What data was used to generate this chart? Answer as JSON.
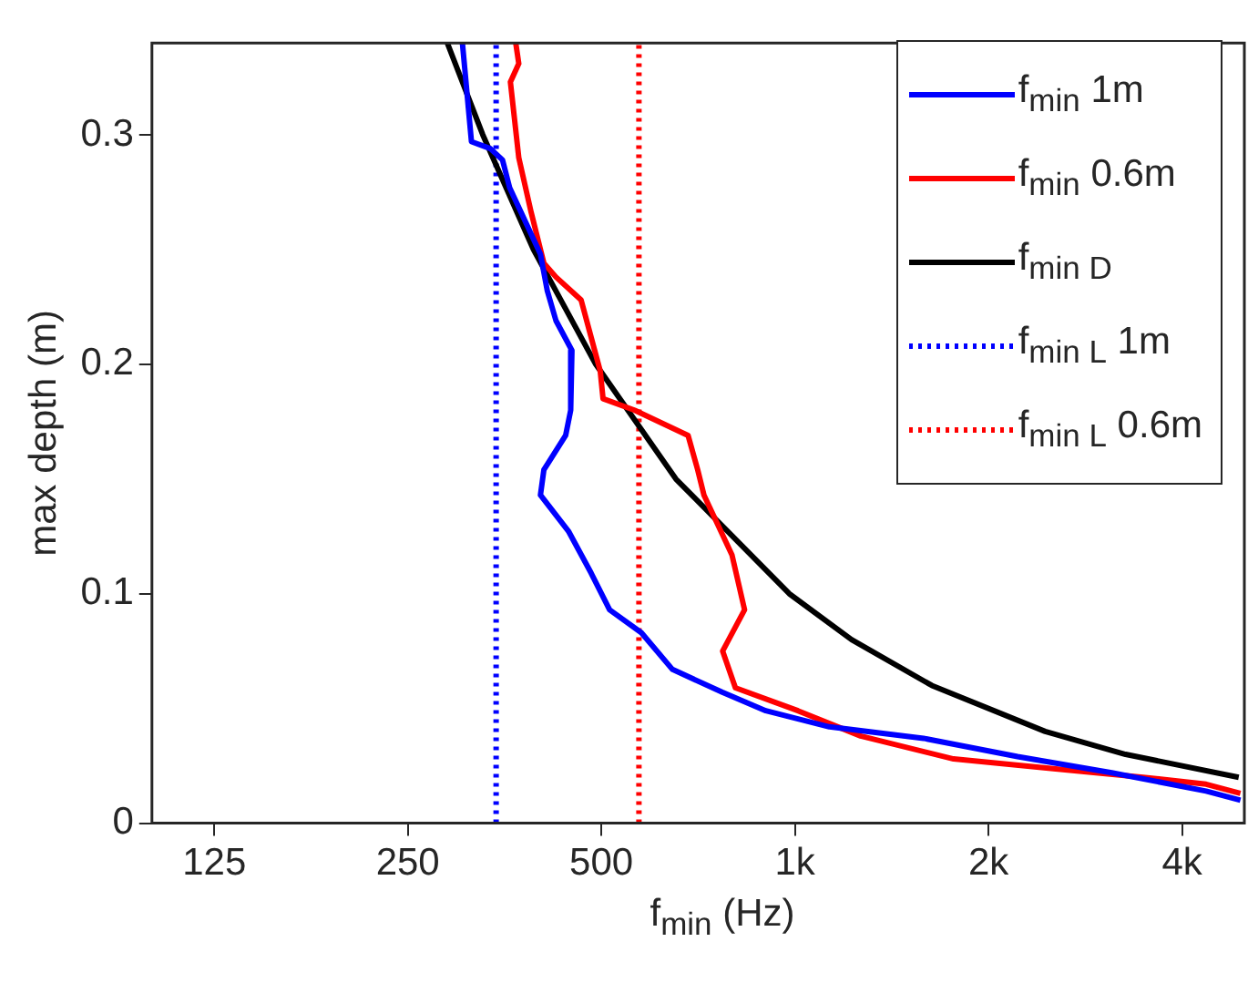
{
  "chart_data": {
    "type": "line",
    "xlabel": "f$_{min}$ (Hz)",
    "ylabel": "max depth (m)",
    "log": "x",
    "xlim": [
      100,
      5000
    ],
    "xticks": [
      125,
      250,
      500,
      {
        "value": 1000,
        "label": "1k"
      },
      {
        "value": 2000,
        "label": "2k"
      },
      {
        "value": 4000,
        "label": "4k"
      }
    ],
    "ylim": [
      0,
      0.34
    ],
    "yticks": [
      0,
      0.1,
      0.2,
      0.3
    ],
    "grid": false,
    "legend": "top right",
    "series": [
      {
        "name": "f$_{min}$ 1m",
        "color": "#0000ff",
        "line_style": "solid",
        "x": [
          304,
          314,
          336,
          351,
          360,
          402,
          412,
          425,
          450,
          448,
          440,
          407,
          402,
          445,
          482,
          515,
          577,
          645,
          772,
          901,
          1131,
          1585,
          2220,
          3110,
          4360,
          4930
        ],
        "values": [
          0.34,
          0.297,
          0.294,
          0.289,
          0.277,
          0.248,
          0.232,
          0.219,
          0.206,
          0.18,
          0.169,
          0.154,
          0.143,
          0.127,
          0.109,
          0.093,
          0.083,
          0.067,
          0.057,
          0.049,
          0.042,
          0.037,
          0.029,
          0.022,
          0.014,
          0.01
        ]
      },
      {
        "name": "f$_{min}$ 0.6m",
        "color": "#ff0000",
        "line_style": "solid",
        "x": [
          368,
          372,
          361,
          372,
          389,
          407,
          425,
          465,
          498,
          503,
          563,
          682,
          706,
          722,
          798,
          835,
          772,
          808,
          1011,
          1265,
          1765,
          2480,
          3480,
          4360,
          4930
        ],
        "values": [
          0.34,
          0.331,
          0.323,
          0.29,
          0.266,
          0.244,
          0.238,
          0.228,
          0.197,
          0.185,
          0.18,
          0.169,
          0.154,
          0.143,
          0.117,
          0.093,
          0.075,
          0.059,
          0.049,
          0.038,
          0.028,
          0.024,
          0.02,
          0.017,
          0.013
        ]
      },
      {
        "name": "f$_{min D}$",
        "color": "#000000",
        "line_style": "solid",
        "x": [
          288,
          327,
          392,
          490,
          653,
          980,
          1225,
          1633,
          2450,
          3267,
          4900
        ],
        "values": [
          0.34,
          0.3,
          0.25,
          0.2,
          0.15,
          0.1,
          0.08,
          0.06,
          0.04,
          0.03,
          0.02
        ]
      },
      {
        "name": "f$_{min L}$ 1m",
        "color": "#0000ff",
        "line_style": "dotted",
        "x": [
          343,
          343
        ],
        "values": [
          0,
          0.34
        ]
      },
      {
        "name": "f$_{min L}$ 0.6m",
        "color": "#ff0000",
        "line_style": "dotted",
        "x": [
          572,
          572
        ],
        "values": [
          0,
          0.34
        ]
      }
    ]
  }
}
